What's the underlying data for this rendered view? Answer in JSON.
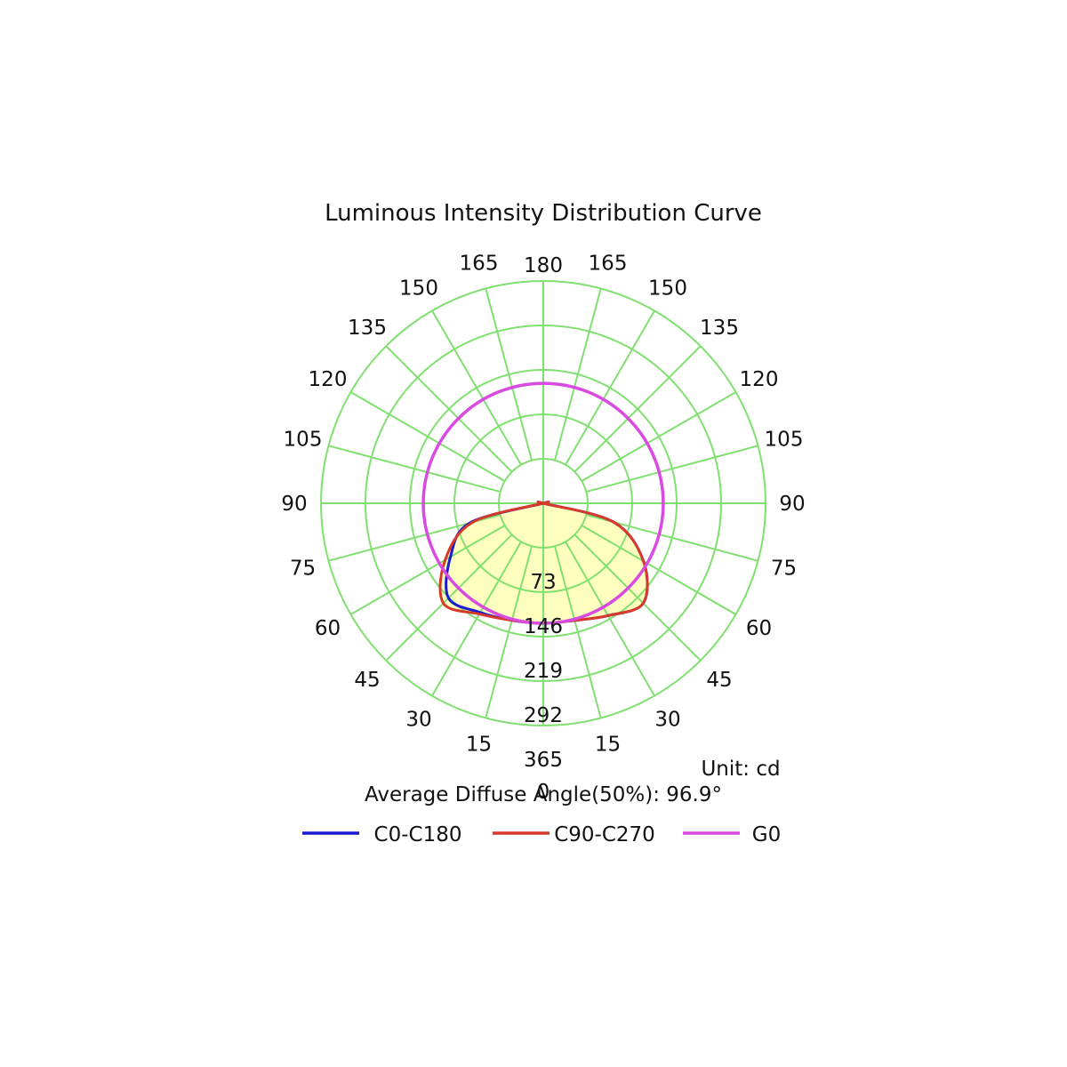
{
  "chart_data": {
    "type": "polar",
    "title": "Luminous Intensity Distribution Curve",
    "unit_label": "Unit: cd",
    "beam_angle_label": "Average Diffuse Angle(50%): 96.9°",
    "radial_ticks": [
      "0",
      "73",
      "146",
      "219",
      "292",
      "365"
    ],
    "radial_max": 365,
    "angle_ticks_left": [
      "15",
      "30",
      "45",
      "60",
      "75",
      "90",
      "105",
      "120",
      "135",
      "150",
      "165"
    ],
    "angle_ticks_right": [
      "15",
      "30",
      "45",
      "60",
      "75",
      "90",
      "105",
      "120",
      "135",
      "150",
      "165"
    ],
    "angle_top": "180",
    "grid": true,
    "colors": {
      "grid": "#80e070",
      "fill": "#ffffc0",
      "c0": "#1a1ad0",
      "c90": "#d83a2a",
      "g0": "#d84ae0"
    },
    "legend_position": "bottom",
    "series": [
      {
        "name": "C0-C180",
        "color": "#1a1ad0",
        "angles": [
          0,
          15,
          30,
          45,
          60,
          75,
          90,
          105,
          120,
          135,
          150,
          165,
          180,
          195,
          210,
          225,
          240,
          255,
          270,
          285,
          300,
          315,
          330,
          345
        ],
        "values": [
          197,
          199,
          213,
          232,
          190,
          120,
          0,
          0,
          0,
          0,
          0,
          0,
          0,
          0,
          0,
          0,
          0,
          0,
          0,
          125,
          176,
          220,
          207,
          199
        ]
      },
      {
        "name": "C90-C270",
        "color": "#d83a2a",
        "angles": [
          0,
          15,
          30,
          45,
          60,
          75,
          90,
          105,
          120,
          135,
          150,
          165,
          180,
          195,
          210,
          225,
          240,
          255,
          270,
          285,
          300,
          315,
          330,
          345
        ],
        "values": [
          197,
          199,
          213,
          232,
          190,
          120,
          0,
          0,
          0,
          0,
          0,
          0,
          0,
          0,
          0,
          0,
          0,
          0,
          0,
          120,
          186,
          232,
          210,
          199
        ]
      },
      {
        "name": "G0",
        "color": "#d84ae0",
        "shape": "circle",
        "radius": 197
      }
    ]
  }
}
